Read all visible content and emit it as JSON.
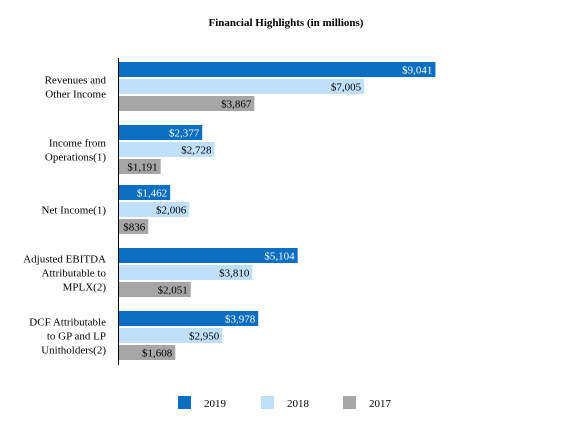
{
  "chart_data": {
    "type": "bar",
    "orientation": "horizontal",
    "title": "Financial Highlights (in millions)",
    "categories": [
      [
        "Revenues and",
        "Other Income"
      ],
      [
        "Income from",
        "Operations(1)"
      ],
      [
        "Net Income(1)"
      ],
      [
        "Adjusted EBITDA",
        "Attributable to",
        "MPLX(2)"
      ],
      [
        "DCF Attributable",
        "to GP and LP",
        "Unitholders(2)"
      ]
    ],
    "series": [
      {
        "name": "2019",
        "color": "#0a6fc2",
        "label_color": "#ffffff",
        "values": [
          9041,
          2377,
          1462,
          5104,
          3978
        ],
        "labels": [
          "$9,041",
          "$2,377",
          "$1,462",
          "$5,104",
          "$3,978"
        ]
      },
      {
        "name": "2018",
        "color": "#bfe0f8",
        "label_color": "#000000",
        "values": [
          7005,
          2728,
          2006,
          3810,
          2950
        ],
        "labels": [
          "$7,005",
          "$2,728",
          "$2,006",
          "$3,810",
          "$2,950"
        ]
      },
      {
        "name": "2017",
        "color": "#a6a6a6",
        "label_color": "#000000",
        "values": [
          3867,
          1191,
          836,
          2051,
          1608
        ],
        "labels": [
          "$3,867",
          "$1,191",
          "$836",
          "$2,051",
          "$1,608"
        ]
      }
    ],
    "xlim": [
      0,
      10000
    ],
    "grid": false,
    "legend_position": "bottom"
  }
}
